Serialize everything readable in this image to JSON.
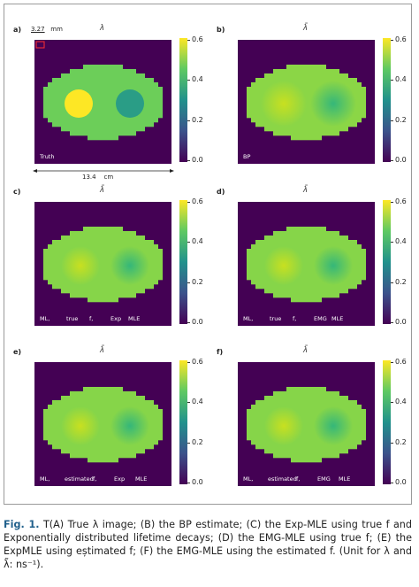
{
  "panels": [
    {
      "label": "a)",
      "title": "λ",
      "inner": [
        "Truth"
      ],
      "style": "truth"
    },
    {
      "label": "b)",
      "title": "λ̃",
      "inner": [
        "BP"
      ],
      "style": "bp"
    },
    {
      "label": "c)",
      "title": "λ̃",
      "inner": [
        "ML,",
        "true",
        "f,",
        "Exp",
        "MLE"
      ],
      "style": "ml"
    },
    {
      "label": "d)",
      "title": "λ̃",
      "inner": [
        "ML,",
        "true",
        "f,",
        "EMG",
        "MLE"
      ],
      "style": "ml"
    },
    {
      "label": "e)",
      "title": "λ̃",
      "inner": [
        "ML,",
        "estimated",
        "f,",
        "Exp",
        "MLE"
      ],
      "style": "mlest"
    },
    {
      "label": "f)",
      "title": "λ̃",
      "inner": [
        "ML,",
        "estimated",
        "f,",
        "EMG",
        "MLE"
      ],
      "style": "mlest"
    }
  ],
  "colorbar": {
    "ticks": [
      "0.6",
      "0.4",
      "0.2",
      "0.0"
    ],
    "values": [
      0.6,
      0.4,
      0.2,
      0.0
    ]
  },
  "scale": {
    "pixel_size": "3.27",
    "pixel_unit": "mm",
    "width": "13.4",
    "width_unit": "cm"
  },
  "caption": {
    "label": "Fig. 1.",
    "text": "T(A) True λ image; (B) the BP estimate; (C) the Exp-MLE using true f and Exponentially distributed lifetime decays; (D) the EMG-MLE using true f; (E) the ExpMLE using eștimated f; (F) the EMG-MLE using the estimated f. (Unit for λ and λ̃: ns⁻¹)."
  },
  "colors": {
    "background": "#440154",
    "ellipse": "#7ad151",
    "bright": "#fde725",
    "teal": "#2a9d86",
    "caption_label": "#1f5f8b"
  }
}
